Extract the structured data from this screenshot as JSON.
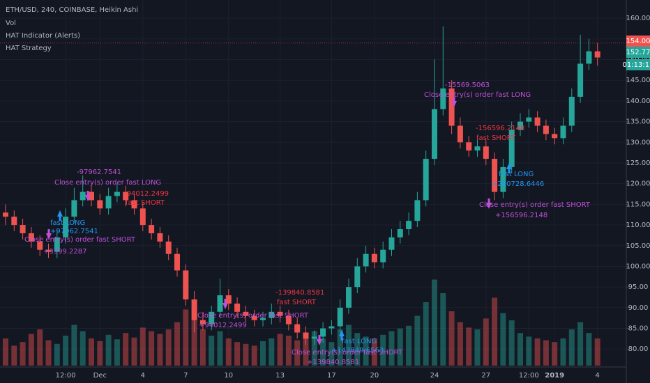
{
  "chart_data": {
    "type": "candlestick",
    "title": "ETH/USD, 240, COINBASE, Heikin Ashi",
    "legend_items": [
      "Vol",
      "HAT Indicator (Alerts)",
      "HAT Strategy"
    ],
    "up_color": "#26a69a",
    "down_color": "#ef5350",
    "grid": true,
    "categories": [
      null,
      null,
      null,
      null,
      null,
      null,
      null,
      "12:00",
      null,
      null,
      null,
      "Dec",
      null,
      null,
      null,
      null,
      "4",
      null,
      null,
      null,
      null,
      "7",
      null,
      null,
      null,
      null,
      "10",
      null,
      null,
      null,
      null,
      null,
      "13",
      null,
      null,
      null,
      null,
      null,
      "17",
      null,
      null,
      null,
      null,
      "20",
      null,
      null,
      null,
      null,
      null,
      null,
      "24",
      null,
      null,
      null,
      null,
      null,
      "27",
      null,
      null,
      null,
      null,
      "12:00",
      null,
      null,
      "2019",
      null,
      null,
      null,
      null,
      "4"
    ],
    "open": [
      113,
      112,
      110,
      108,
      106,
      104,
      103.5,
      107,
      112,
      116,
      118,
      116,
      114,
      117,
      118,
      116,
      114,
      110,
      108,
      106,
      103,
      99,
      92,
      87,
      86,
      89,
      93,
      91,
      89,
      88,
      87,
      87.5,
      89,
      88,
      86,
      84,
      82.5,
      83,
      85,
      85.5,
      90,
      95,
      100,
      103,
      101,
      104,
      107,
      109,
      111,
      116,
      126,
      138,
      143,
      134,
      130,
      128,
      129,
      126,
      118,
      124,
      133,
      135,
      136,
      134,
      132,
      131,
      134,
      141,
      149,
      152
    ],
    "high": [
      115,
      113.5,
      111.5,
      109.5,
      107.5,
      105.5,
      109,
      114,
      119,
      122,
      119.5,
      117.5,
      119,
      120,
      119.5,
      117.5,
      115.5,
      111.5,
      109.5,
      107.5,
      104.5,
      100.5,
      94,
      89,
      90.5,
      97,
      94.5,
      92.5,
      90.5,
      89.5,
      89,
      91,
      90.5,
      89.5,
      87.5,
      85.5,
      84.5,
      86.5,
      87,
      92,
      97,
      102,
      105,
      104.5,
      106,
      109,
      111,
      113,
      118,
      128,
      150,
      158,
      145,
      136,
      131.5,
      131,
      130.5,
      127.5,
      126,
      135,
      137,
      138,
      137.5,
      135.5,
      133.5,
      136,
      143,
      156,
      155,
      154
    ],
    "low": [
      110,
      108.5,
      106.5,
      104.5,
      102.5,
      102,
      102,
      105.5,
      110.5,
      114.5,
      114.5,
      112.5,
      112.5,
      115.5,
      114.5,
      112.5,
      108.5,
      106.5,
      104.5,
      101.5,
      97.5,
      90.5,
      84,
      84.5,
      84.5,
      87.5,
      89.5,
      87.5,
      86.5,
      85.5,
      85.5,
      86,
      86.5,
      84.5,
      82.5,
      81,
      81,
      81.5,
      83.5,
      84,
      88.5,
      93.5,
      98.5,
      99.5,
      99.5,
      102.5,
      105.5,
      107.5,
      109.5,
      114.5,
      124.5,
      136.5,
      132,
      128.5,
      126.5,
      126.5,
      124.5,
      116,
      116.5,
      122.5,
      131.5,
      133.5,
      132.5,
      130.5,
      129.5,
      129.5,
      132.5,
      139.5,
      147.5,
      148.5
    ],
    "close": [
      112,
      110,
      108,
      106,
      104,
      103.5,
      107,
      112,
      116,
      118,
      116,
      114,
      117,
      118,
      116,
      114,
      110,
      108,
      106,
      103,
      99,
      92,
      87,
      86,
      89,
      93,
      91,
      89,
      88,
      87,
      87.5,
      89,
      88,
      86,
      84,
      82.5,
      83,
      85,
      85.5,
      90,
      95,
      100,
      103,
      101,
      104,
      107,
      109,
      111,
      116,
      126,
      138,
      143,
      134,
      130,
      128,
      129,
      126,
      118,
      124,
      133,
      135,
      136,
      134,
      132,
      131,
      134,
      141,
      149,
      152,
      150.5
    ],
    "volume": [
      30,
      22,
      26,
      35,
      40,
      28,
      24,
      33,
      45,
      38,
      30,
      27,
      34,
      29,
      36,
      31,
      42,
      38,
      35,
      40,
      48,
      62,
      55,
      40,
      33,
      38,
      30,
      26,
      24,
      22,
      27,
      30,
      35,
      33,
      28,
      34,
      38,
      30,
      26,
      40,
      45,
      36,
      32,
      30,
      34,
      38,
      41,
      44,
      55,
      70,
      95,
      80,
      60,
      48,
      42,
      40,
      52,
      75,
      58,
      50,
      36,
      32,
      30,
      28,
      26,
      30,
      40,
      48,
      36,
      30
    ],
    "volume_ylim": [
      0,
      100
    ],
    "ylim": [
      76,
      164.4
    ],
    "yticks": [
      {
        "value": 80,
        "label": "80.00"
      },
      {
        "value": 85,
        "label": "85.00"
      },
      {
        "value": 90,
        "label": "90.00"
      },
      {
        "value": 95,
        "label": "95.00"
      },
      {
        "value": 100,
        "label": "100.00"
      },
      {
        "value": 105,
        "label": "105.00"
      },
      {
        "value": 110,
        "label": "110.00"
      },
      {
        "value": 115,
        "label": "115.00"
      },
      {
        "value": 120,
        "label": "120.00"
      },
      {
        "value": 125,
        "label": "125.00"
      },
      {
        "value": 130,
        "label": "130.00"
      },
      {
        "value": 135,
        "label": "135.00"
      },
      {
        "value": 140,
        "label": "140.00"
      },
      {
        "value": 145,
        "label": "145.00"
      },
      {
        "value": 150,
        "label": "150.00"
      },
      {
        "value": 155,
        "label": "155.00"
      },
      {
        "value": 160,
        "label": "160.00"
      }
    ],
    "price_badges": [
      {
        "value": 154,
        "label": "154.00",
        "color": "#ef5350"
      },
      {
        "value": 152.77,
        "label": "152.77",
        "color": "#26a69a"
      }
    ],
    "countdown": "01:13:11",
    "annotations": [
      {
        "text": "-97962.7541",
        "color": "#c050d8"
      },
      {
        "text": "Close entry(s) order fast LONG",
        "color": "#c050d8"
      },
      {
        "text": "-94012.2499",
        "color": "#f23645"
      },
      {
        "text": "fast SHORT",
        "color": "#f23645"
      },
      {
        "text": "fast LONG",
        "color": "#2196f3"
      },
      {
        "text": "+97962.7541",
        "color": "#2196f3"
      },
      {
        "text": "Close entry(s) order fast SHORT",
        "color": "#c050d8"
      },
      {
        "text": "+3399.2287",
        "color": "#c050d8"
      },
      {
        "text": "-139840.8581",
        "color": "#f23645"
      },
      {
        "text": "fast SHORT",
        "color": "#f23645"
      },
      {
        "text": "Close entry(s) order fast SHORT",
        "color": "#c050d8"
      },
      {
        "text": "+94012.2499",
        "color": "#c050d8"
      },
      {
        "text": "fast LONG",
        "color": "#2196f3"
      },
      {
        "text": "+143849.6563",
        "color": "#2196f3"
      },
      {
        "text": "Close entry(s) order fast SHORT",
        "color": "#c050d8"
      },
      {
        "text": "+139840.8581",
        "color": "#c050d8"
      },
      {
        "text": "-15569.5063",
        "color": "#c050d8"
      },
      {
        "text": "Close entry(s) order fast LONG",
        "color": "#c050d8"
      },
      {
        "text": "-156596.2148",
        "color": "#f23645"
      },
      {
        "text": "fast SHORT",
        "color": "#f23645"
      },
      {
        "text": "fast LONG",
        "color": "#2196f3"
      },
      {
        "text": "+260728.6446",
        "color": "#2196f3"
      },
      {
        "text": "Close entry(s) order fast SHORT",
        "color": "#c050d8"
      },
      {
        "text": "+156596.2148",
        "color": "#c050d8"
      }
    ]
  }
}
